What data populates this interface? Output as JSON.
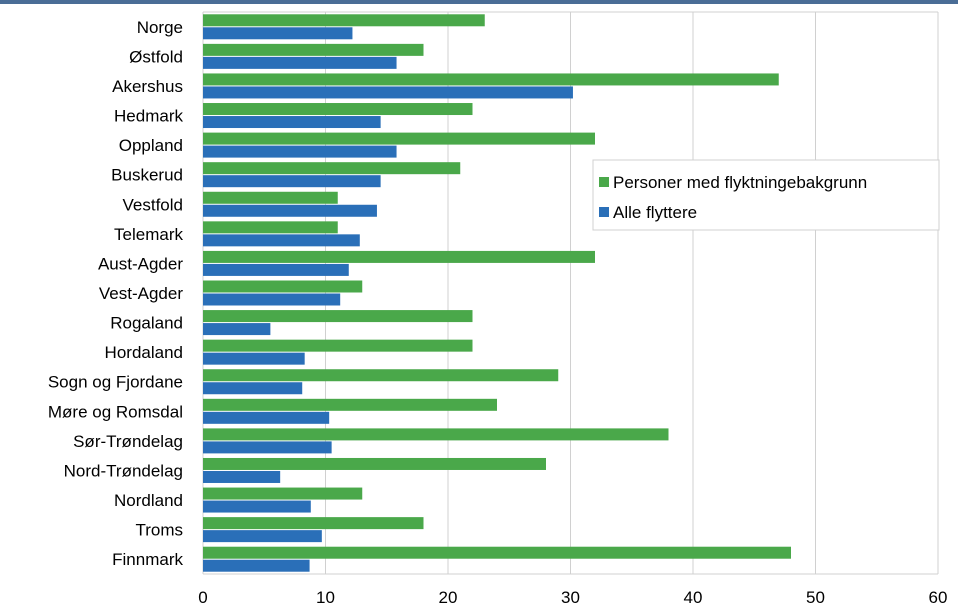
{
  "colors": {
    "series_green": "#4aa84a",
    "series_blue": "#2a6fb8",
    "grid": "#d0d0d0",
    "top_rule": "#4a6d96"
  },
  "chart_data": {
    "type": "bar",
    "orientation": "horizontal",
    "title": "",
    "xlabel": "",
    "ylabel": "",
    "xlim": [
      0,
      60
    ],
    "x_ticks": [
      "0",
      "10",
      "20",
      "30",
      "40",
      "50",
      "60"
    ],
    "grid": true,
    "legend_placement": "right",
    "categories": [
      "Norge",
      "Østfold",
      "Akershus",
      "Hedmark",
      "Oppland",
      "Buskerud",
      "Vestfold",
      "Telemark",
      "Aust-Agder",
      "Vest-Agder",
      "Rogaland",
      "Hordaland",
      "Sogn og Fjordane",
      "Møre og Romsdal",
      "Sør-Trøndelag",
      "Nord-Trøndelag",
      "Nordland",
      "Troms",
      "Finnmark"
    ],
    "series": [
      {
        "name": "Personer med flyktningebakgrunn",
        "values": [
          23,
          18,
          47,
          22,
          32,
          21,
          11,
          11,
          32,
          13,
          22,
          22,
          29,
          24,
          38,
          28,
          13,
          18,
          48
        ]
      },
      {
        "name": "Alle flyttere",
        "values": [
          12.2,
          15.8,
          30.2,
          14.5,
          15.8,
          14.5,
          14.2,
          12.8,
          11.9,
          11.2,
          5.5,
          8.3,
          8.1,
          10.3,
          10.5,
          6.3,
          8.8,
          9.7,
          8.7
        ]
      }
    ]
  }
}
